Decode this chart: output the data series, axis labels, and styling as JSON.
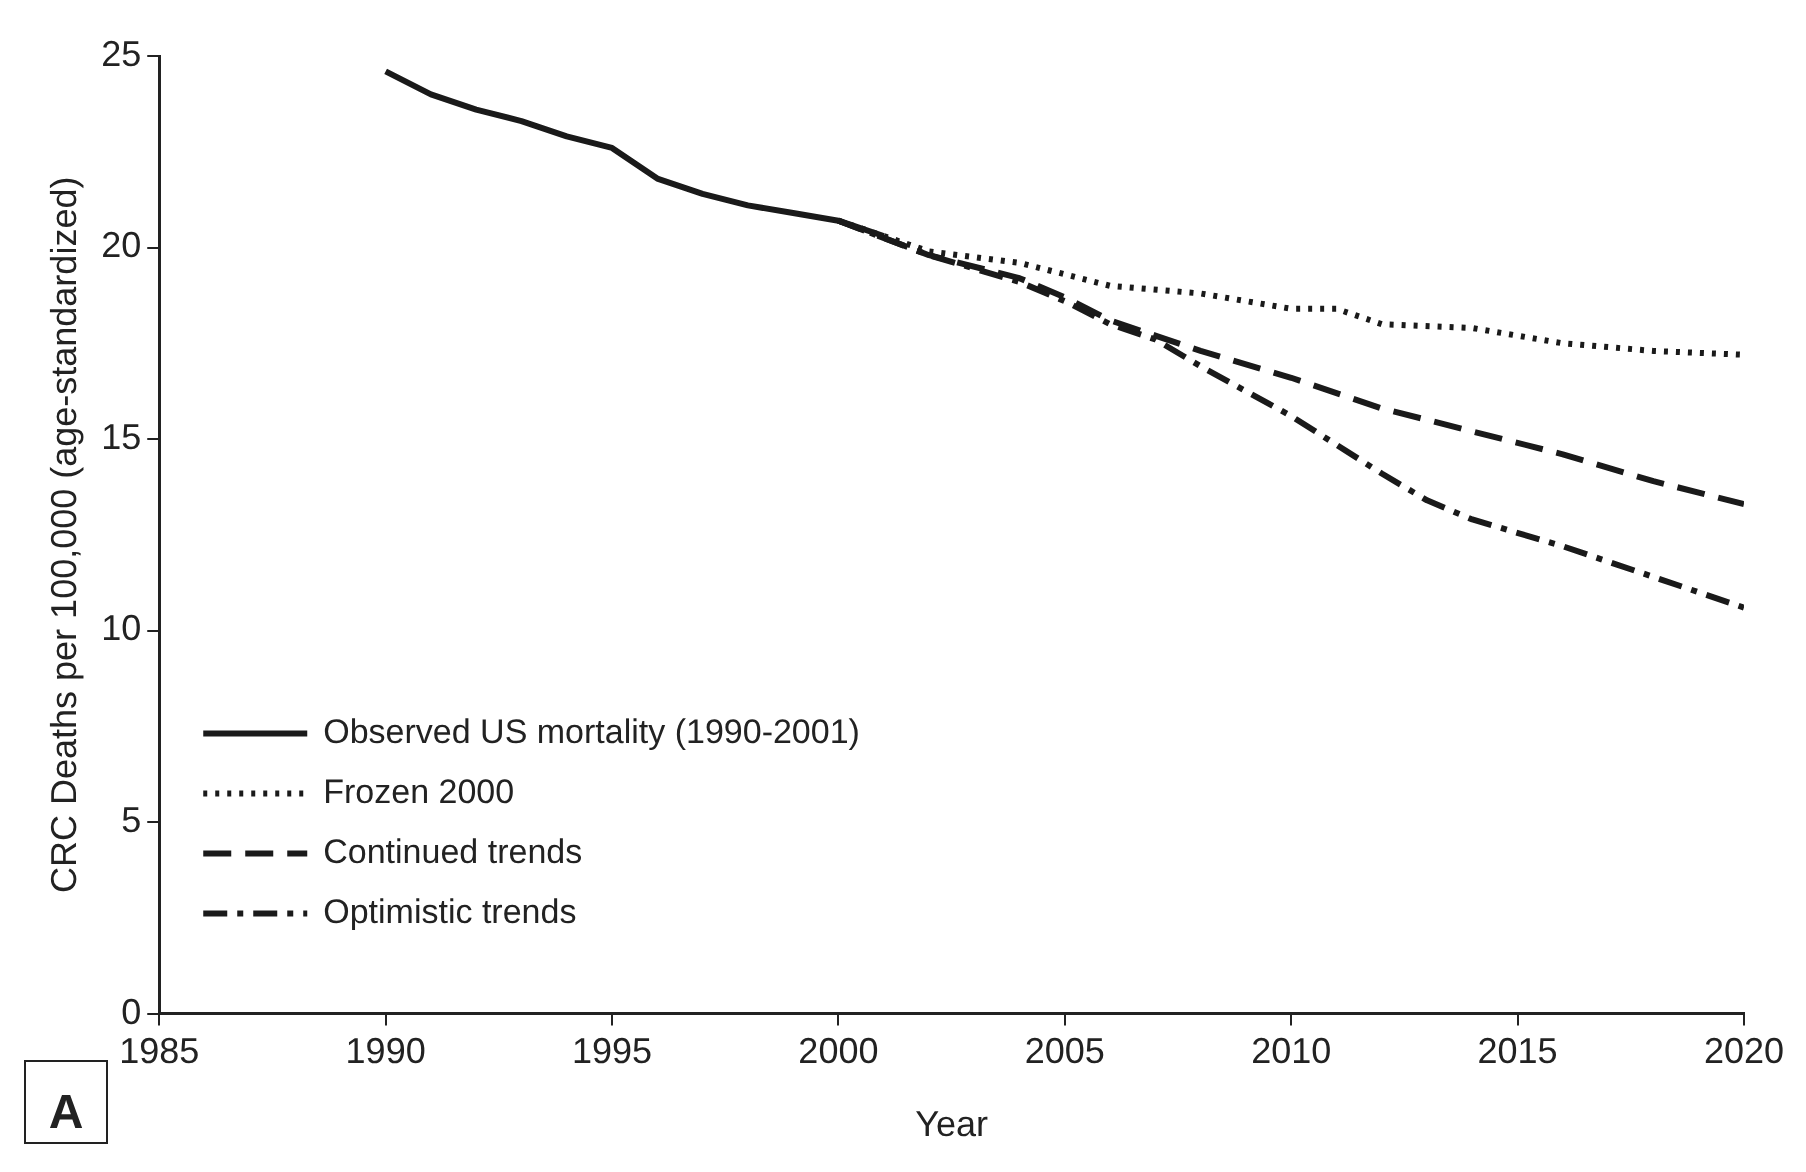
{
  "chart_data": {
    "type": "line",
    "xlabel": "Year",
    "ylabel": "CRC Deaths per 100,000 (age-standardized)",
    "xlim": [
      1985,
      2020
    ],
    "xticks": [
      1985,
      1990,
      1995,
      2000,
      2005,
      2010,
      2015,
      2020
    ],
    "ylim": [
      0,
      25
    ],
    "yticks": [
      0,
      5,
      10,
      15,
      20,
      25
    ],
    "grid": false,
    "legend": "bottom left",
    "marker": "none",
    "annotations": [
      "A"
    ],
    "series": [
      {
        "name": "Observed US mortality (1990-2001)",
        "color": "#1a1a1a",
        "line_style": "solid",
        "x": [
          1990,
          1991,
          1992,
          1993,
          1994,
          1995,
          1996,
          1997,
          1998,
          1999,
          2000,
          2001
        ],
        "values": [
          24.6,
          24.0,
          23.6,
          23.3,
          22.9,
          22.6,
          21.8,
          21.4,
          21.1,
          20.9,
          20.7,
          20.3
        ]
      },
      {
        "name": "Frozen 2000",
        "color": "#1a1a1a",
        "line_style": "dotted",
        "x": [
          2000,
          2002,
          2004,
          2005,
          2006,
          2008,
          2010,
          2011,
          2012,
          2014,
          2016,
          2018,
          2020
        ],
        "values": [
          20.7,
          19.9,
          19.6,
          19.3,
          19.0,
          18.8,
          18.4,
          18.4,
          18.0,
          17.9,
          17.5,
          17.3,
          17.2
        ]
      },
      {
        "name": "Continued trends",
        "color": "#1a1a1a",
        "line_style": "dashed",
        "x": [
          2000,
          2002,
          2004,
          2005,
          2006,
          2007,
          2008,
          2010,
          2012,
          2014,
          2016,
          2018,
          2020
        ],
        "values": [
          20.7,
          19.8,
          19.2,
          18.7,
          18.1,
          17.7,
          17.3,
          16.6,
          15.8,
          15.2,
          14.6,
          13.9,
          13.3
        ]
      },
      {
        "name": "Optimistic trends",
        "color": "#1a1a1a",
        "line_style": "dashdot",
        "x": [
          2000,
          2002,
          2004,
          2005,
          2006,
          2007,
          2008,
          2010,
          2012,
          2013,
          2014,
          2016,
          2018,
          2020
        ],
        "values": [
          20.7,
          19.8,
          19.1,
          18.6,
          18.0,
          17.6,
          16.9,
          15.6,
          14.1,
          13.4,
          12.9,
          12.2,
          11.4,
          10.6
        ]
      }
    ]
  }
}
